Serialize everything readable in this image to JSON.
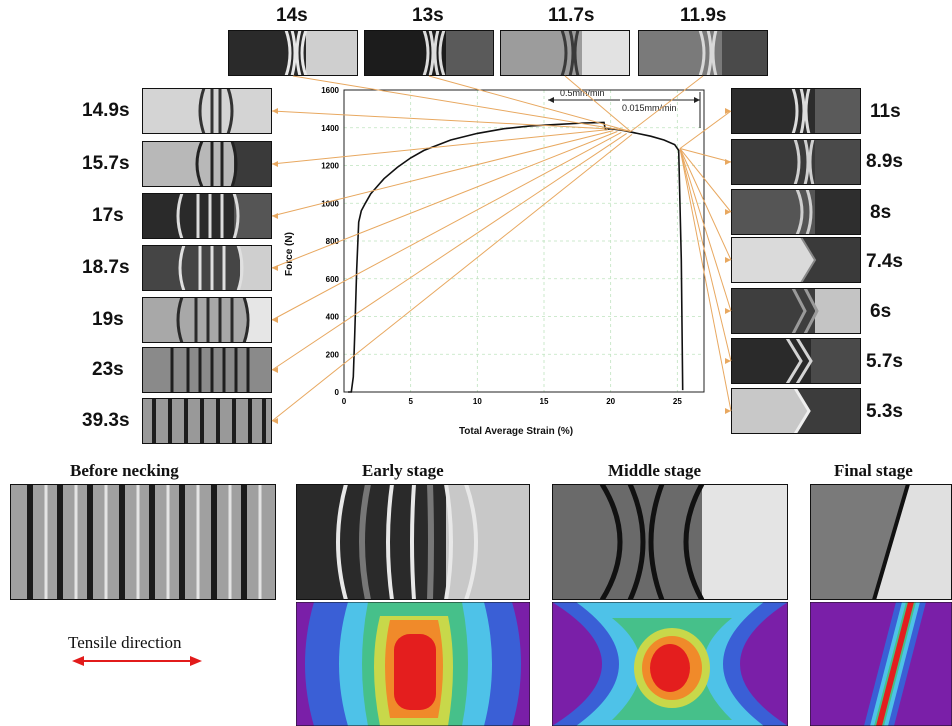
{
  "top_frames": [
    "14s",
    "13s",
    "11.7s",
    "11.9s"
  ],
  "left_frames": [
    "14.9s",
    "15.7s",
    "17s",
    "18.7s",
    "19s",
    "23s",
    "39.3s"
  ],
  "right_frames": [
    "11s",
    "8.9s",
    "8s",
    "7.4s",
    "6s",
    "5.7s",
    "5.3s"
  ],
  "stages": [
    "Before necking",
    "Early stage",
    "Middle stage",
    "Final stage"
  ],
  "tensile_label": "Tensile direction",
  "chart_data": {
    "type": "line",
    "xlabel": "Total Average Strain (%)",
    "ylabel": "Force (N)",
    "xlim": [
      0,
      27
    ],
    "ylim": [
      0,
      1600
    ],
    "xticks": [
      0,
      5,
      10,
      15,
      20,
      25
    ],
    "yticks": [
      0,
      200,
      400,
      600,
      800,
      1000,
      1200,
      1400,
      1600
    ],
    "annotations": [
      "0.5mm/min",
      "0.015mm/min"
    ],
    "series": [
      {
        "x": [
          0.3,
          0.55,
          0.7,
          0.8,
          0.95,
          1.1,
          1.3,
          1.6,
          2,
          3,
          4,
          5,
          6,
          8,
          10,
          12,
          14,
          16,
          18,
          19.5,
          19.6,
          20,
          21,
          22,
          23,
          24,
          24.8,
          25.1,
          25.3,
          25.4
        ],
        "y": [
          0,
          0,
          80,
          300,
          650,
          900,
          960,
          1000,
          1050,
          1130,
          1190,
          1240,
          1280,
          1335,
          1370,
          1395,
          1410,
          1418,
          1425,
          1428,
          1390,
          1395,
          1385,
          1370,
          1355,
          1335,
          1310,
          1280,
          700,
          10
        ]
      }
    ]
  }
}
